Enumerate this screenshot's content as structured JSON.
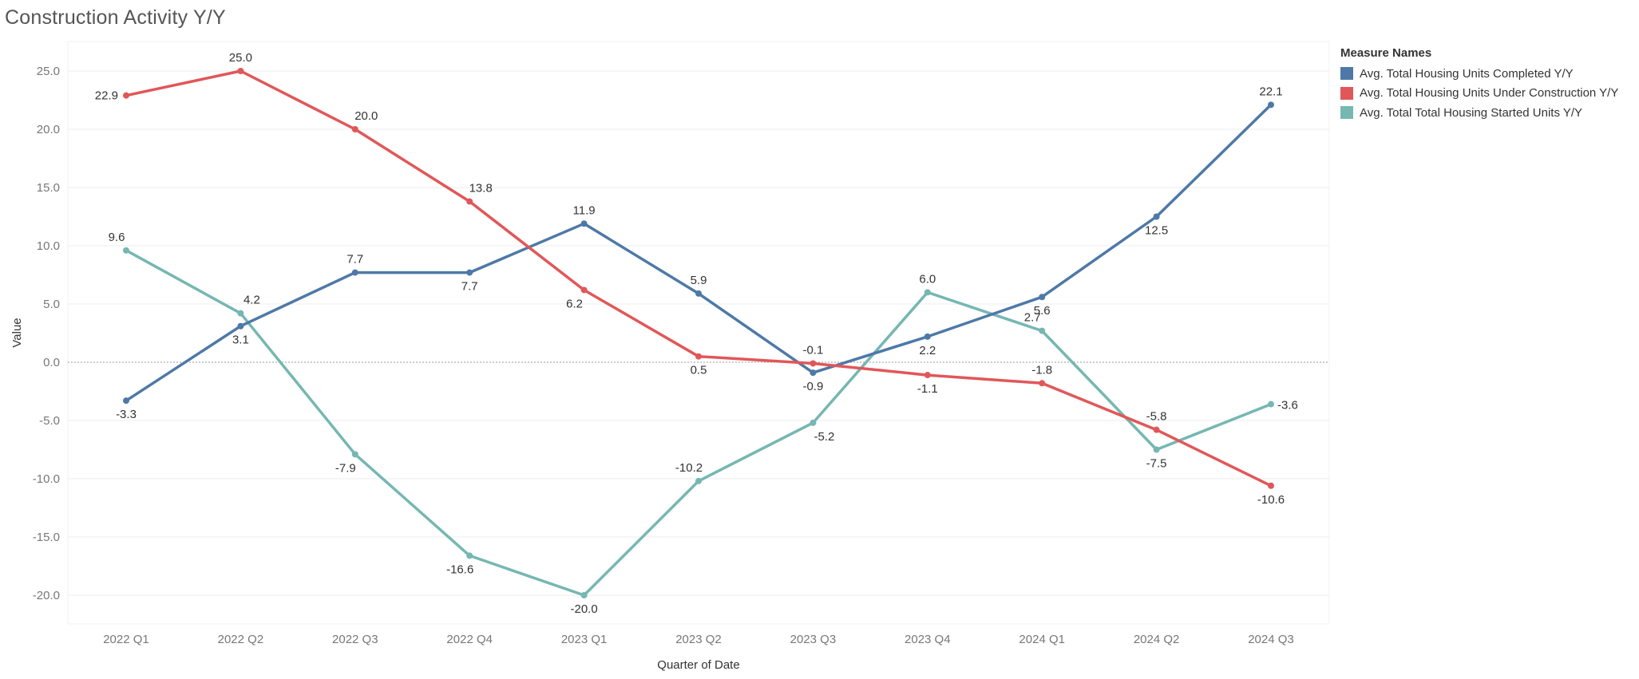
{
  "title": "Construction Activity Y/Y",
  "legend": {
    "title": "Measure Names",
    "placement": "top-right"
  },
  "colors": {
    "completed": "#4e79a7",
    "under_construction": "#e15759",
    "started": "#76b7b2"
  },
  "chart_data": {
    "type": "line",
    "title": "Construction Activity Y/Y",
    "xlabel": "Quarter of Date",
    "ylabel": "Value",
    "categories": [
      "2022 Q1",
      "2022 Q2",
      "2022 Q3",
      "2022 Q4",
      "2023 Q1",
      "2023 Q2",
      "2023 Q3",
      "2023 Q4",
      "2024 Q1",
      "2024 Q2",
      "2024 Q3"
    ],
    "ylim": [
      -22.5,
      27
    ],
    "yticks": [
      "25.0",
      "20.0",
      "15.0",
      "10.0",
      "5.0",
      "0.0",
      "-5.0",
      "-10.0",
      "-15.0",
      "-20.0"
    ],
    "ytick_values": [
      25,
      20,
      15,
      10,
      5,
      0,
      -5,
      -10,
      -15,
      -20
    ],
    "grid": true,
    "zero_line": true,
    "series": [
      {
        "name": "Avg. Total  Housing Units Completed Y/Y",
        "color": "#4e79a7",
        "values": [
          -3.3,
          3.1,
          7.7,
          7.7,
          11.9,
          5.9,
          -0.9,
          2.2,
          5.6,
          12.5,
          22.1
        ],
        "labels": [
          "-3.3",
          "3.1",
          "7.7",
          "7.7",
          "11.9",
          "5.9",
          "-0.9",
          "2.2",
          "5.6",
          "12.5",
          "22.1"
        ]
      },
      {
        "name": "Avg. Total Housing Units Under Construction Y/Y",
        "color": "#e15759",
        "values": [
          22.9,
          25.0,
          20.0,
          13.8,
          6.2,
          0.5,
          -0.1,
          -1.1,
          -1.8,
          -5.8,
          -10.6
        ],
        "labels": [
          "22.9",
          "25.0",
          "20.0",
          "13.8",
          "6.2",
          "0.5",
          "-0.1",
          "-1.1",
          "-1.8",
          "-5.8",
          "-10.6"
        ]
      },
      {
        "name": "Avg. Total Total Housing Started Units Y/Y",
        "color": "#76b7b2",
        "values": [
          9.6,
          4.2,
          -7.9,
          -16.6,
          -20.0,
          -10.2,
          -5.2,
          6.0,
          2.7,
          -7.5,
          -3.6
        ],
        "labels": [
          "9.6",
          "4.2",
          "-7.9",
          "-16.6",
          "-20.0",
          "-10.2",
          "-5.2",
          "6.0",
          "2.7",
          "-7.5",
          "-3.6"
        ]
      }
    ]
  }
}
